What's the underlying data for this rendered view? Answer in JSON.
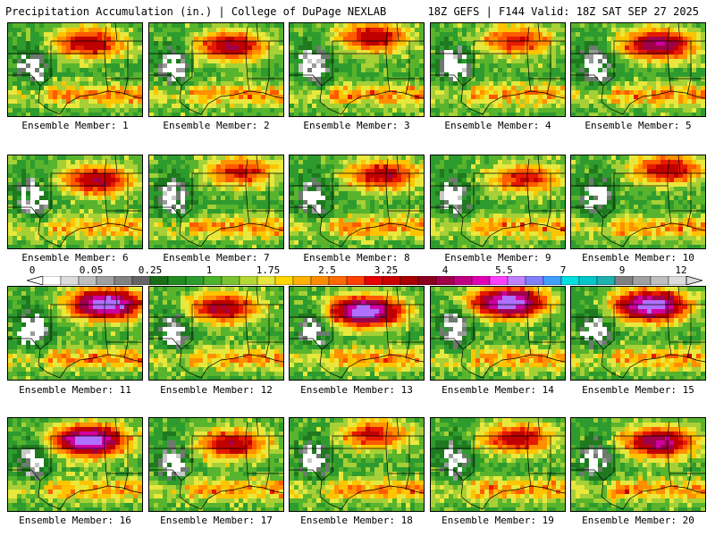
{
  "header": {
    "left": "Precipitation Accumulation (in.) | College of DuPage NEXLAB",
    "right": "18Z GEFS | F144 Valid: 18Z SAT SEP 27 2025"
  },
  "caption_prefix": "Ensemble Member: ",
  "members": [
    {
      "label": "Ensemble Member: 1",
      "peak": 3.0
    },
    {
      "label": "Ensemble Member: 2",
      "peak": 3.25
    },
    {
      "label": "Ensemble Member: 3",
      "peak": 3.0
    },
    {
      "label": "Ensemble Member: 4",
      "peak": 2.5
    },
    {
      "label": "Ensemble Member: 5",
      "peak": 4.0
    },
    {
      "label": "Ensemble Member: 6",
      "peak": 3.25
    },
    {
      "label": "Ensemble Member: 7",
      "peak": 2.5
    },
    {
      "label": "Ensemble Member: 8",
      "peak": 3.0
    },
    {
      "label": "Ensemble Member: 9",
      "peak": 2.5
    },
    {
      "label": "Ensemble Member: 10",
      "peak": 3.0
    },
    {
      "label": "Ensemble Member: 11",
      "peak": 5.5
    },
    {
      "label": "Ensemble Member: 12",
      "peak": 3.25
    },
    {
      "label": "Ensemble Member: 13",
      "peak": 5.5
    },
    {
      "label": "Ensemble Member: 14",
      "peak": 5.5
    },
    {
      "label": "Ensemble Member: 15",
      "peak": 5.5
    },
    {
      "label": "Ensemble Member: 16",
      "peak": 5.5
    },
    {
      "label": "Ensemble Member: 17",
      "peak": 3.0
    },
    {
      "label": "Ensemble Member: 18",
      "peak": 2.5
    },
    {
      "label": "Ensemble Member: 19",
      "peak": 3.0
    },
    {
      "label": "Ensemble Member: 20",
      "peak": 4.0
    }
  ],
  "colorbar": {
    "labels": [
      "0",
      "0.05",
      "0.25",
      "1",
      "1.75",
      "2.5",
      "3.25",
      "4",
      "5.5",
      "7",
      "9",
      "12"
    ],
    "colors": [
      "#ffffff",
      "#dcdcdc",
      "#bebebe",
      "#a0a0a0",
      "#828282",
      "#646464",
      "#1a6b1a",
      "#228b22",
      "#2e9b2e",
      "#4cb32c",
      "#7ac330",
      "#b4d836",
      "#e6e63c",
      "#ffd700",
      "#ffb000",
      "#ff8c00",
      "#ff6a00",
      "#ff4000",
      "#e60000",
      "#c80000",
      "#a80000",
      "#8b0020",
      "#a0004a",
      "#c00080",
      "#e000b4",
      "#ff40ff",
      "#c080ff",
      "#8080ff",
      "#40a0ff",
      "#00e0e0",
      "#00c8c8",
      "#20b0b0",
      "#808080",
      "#a0a0a0",
      "#bebebe",
      "#dcdcdc"
    ]
  }
}
